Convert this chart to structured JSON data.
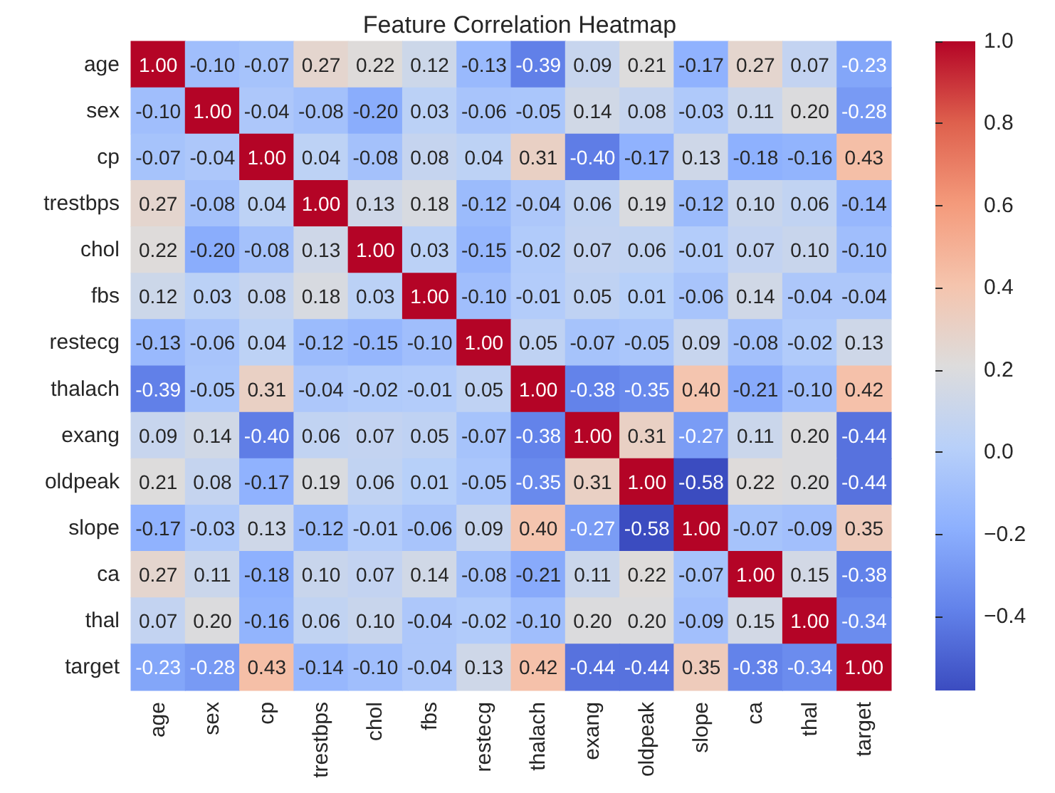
{
  "chart_data": {
    "type": "heatmap",
    "title": "Feature Correlation Heatmap",
    "categories": [
      "age",
      "sex",
      "cp",
      "trestbps",
      "chol",
      "fbs",
      "restecg",
      "thalach",
      "exang",
      "oldpeak",
      "slope",
      "ca",
      "thal",
      "target"
    ],
    "y_categories": [
      "age",
      "sex",
      "cp",
      "trestbps",
      "chol",
      "fbs",
      "restecg",
      "thalach",
      "exang",
      "oldpeak",
      "slope",
      "ca",
      "thal",
      "target"
    ],
    "cells": [
      [
        1.0,
        -0.1,
        -0.07,
        0.27,
        0.22,
        0.12,
        -0.13,
        -0.39,
        0.09,
        0.21,
        -0.17,
        0.27,
        0.07,
        -0.23
      ],
      [
        -0.1,
        1.0,
        -0.04,
        -0.08,
        -0.2,
        0.03,
        -0.06,
        -0.05,
        0.14,
        0.08,
        -0.03,
        0.11,
        0.2,
        -0.28
      ],
      [
        -0.07,
        -0.04,
        1.0,
        0.04,
        -0.08,
        0.08,
        0.04,
        0.31,
        -0.4,
        -0.17,
        0.13,
        -0.18,
        -0.16,
        0.43
      ],
      [
        0.27,
        -0.08,
        0.04,
        1.0,
        0.13,
        0.18,
        -0.12,
        -0.04,
        0.06,
        0.19,
        -0.12,
        0.1,
        0.06,
        -0.14
      ],
      [
        0.22,
        -0.2,
        -0.08,
        0.13,
        1.0,
        0.03,
        -0.15,
        -0.02,
        0.07,
        0.06,
        -0.01,
        0.07,
        0.1,
        -0.1
      ],
      [
        0.12,
        0.03,
        0.08,
        0.18,
        0.03,
        1.0,
        -0.1,
        -0.01,
        0.05,
        0.01,
        -0.06,
        0.14,
        -0.04,
        -0.04
      ],
      [
        -0.13,
        -0.06,
        0.04,
        -0.12,
        -0.15,
        -0.1,
        1.0,
        0.05,
        -0.07,
        -0.05,
        0.09,
        -0.08,
        -0.02,
        0.13
      ],
      [
        -0.39,
        -0.05,
        0.31,
        -0.04,
        -0.02,
        -0.01,
        0.05,
        1.0,
        -0.38,
        -0.35,
        0.4,
        -0.21,
        -0.1,
        0.42
      ],
      [
        0.09,
        0.14,
        -0.4,
        0.06,
        0.07,
        0.05,
        -0.07,
        -0.38,
        1.0,
        0.31,
        -0.27,
        0.11,
        0.2,
        -0.44
      ],
      [
        0.21,
        0.08,
        -0.17,
        0.19,
        0.06,
        0.01,
        -0.05,
        -0.35,
        0.31,
        1.0,
        -0.58,
        0.22,
        0.2,
        -0.44
      ],
      [
        -0.17,
        -0.03,
        0.13,
        -0.12,
        -0.01,
        -0.06,
        0.09,
        0.4,
        -0.27,
        -0.58,
        1.0,
        -0.07,
        -0.09,
        0.35
      ],
      [
        0.27,
        0.11,
        -0.18,
        0.1,
        0.07,
        0.14,
        -0.08,
        -0.21,
        0.11,
        0.22,
        -0.07,
        1.0,
        0.15,
        -0.38
      ],
      [
        0.07,
        0.2,
        -0.16,
        0.06,
        0.1,
        -0.04,
        -0.02,
        -0.1,
        0.2,
        0.2,
        -0.09,
        0.15,
        1.0,
        -0.34
      ],
      [
        -0.23,
        -0.28,
        0.43,
        -0.14,
        -0.1,
        -0.04,
        0.13,
        0.42,
        -0.44,
        -0.44,
        0.35,
        -0.38,
        -0.34,
        1.0
      ]
    ],
    "cell_labels": [
      [
        "1.00",
        "-0.10",
        "-0.07",
        "0.27",
        "0.22",
        "0.12",
        "-0.13",
        "-0.39",
        "0.09",
        "0.21",
        "-0.17",
        "0.27",
        "0.07",
        "-0.23"
      ],
      [
        "-0.10",
        "1.00",
        "-0.04",
        "-0.08",
        "-0.20",
        "0.03",
        "-0.06",
        "-0.05",
        "0.14",
        "0.08",
        "-0.03",
        "0.11",
        "0.20",
        "-0.28"
      ],
      [
        "-0.07",
        "-0.04",
        "1.00",
        "0.04",
        "-0.08",
        "0.08",
        "0.04",
        "0.31",
        "-0.40",
        "-0.17",
        "0.13",
        "-0.18",
        "-0.16",
        "0.43"
      ],
      [
        "0.27",
        "-0.08",
        "0.04",
        "1.00",
        "0.13",
        "0.18",
        "-0.12",
        "-0.04",
        "0.06",
        "0.19",
        "-0.12",
        "0.10",
        "0.06",
        "-0.14"
      ],
      [
        "0.22",
        "-0.20",
        "-0.08",
        "0.13",
        "1.00",
        "0.03",
        "-0.15",
        "-0.02",
        "0.07",
        "0.06",
        "-0.01",
        "0.07",
        "0.10",
        "-0.10"
      ],
      [
        "0.12",
        "0.03",
        "0.08",
        "0.18",
        "0.03",
        "1.00",
        "-0.10",
        "-0.01",
        "0.05",
        "0.01",
        "-0.06",
        "0.14",
        "-0.04",
        "-0.04"
      ],
      [
        "-0.13",
        "-0.06",
        "0.04",
        "-0.12",
        "-0.15",
        "-0.10",
        "1.00",
        "0.05",
        "-0.07",
        "-0.05",
        "0.09",
        "-0.08",
        "-0.02",
        "0.13"
      ],
      [
        "-0.39",
        "-0.05",
        "0.31",
        "-0.04",
        "-0.02",
        "-0.01",
        "0.05",
        "1.00",
        "-0.38",
        "-0.35",
        "0.40",
        "-0.21",
        "-0.10",
        "0.42"
      ],
      [
        "0.09",
        "0.14",
        "-0.40",
        "0.06",
        "0.07",
        "0.05",
        "-0.07",
        "-0.38",
        "1.00",
        "0.31",
        "-0.27",
        "0.11",
        "0.20",
        "-0.44"
      ],
      [
        "0.21",
        "0.08",
        "-0.17",
        "0.19",
        "0.06",
        "0.01",
        "-0.05",
        "-0.35",
        "0.31",
        "1.00",
        "-0.58",
        "0.22",
        "0.20",
        "-0.44"
      ],
      [
        "-0.17",
        "-0.03",
        "0.13",
        "-0.12",
        "-0.01",
        "-0.06",
        "0.09",
        "0.40",
        "-0.27",
        "-0.58",
        "1.00",
        "-0.07",
        "-0.09",
        "0.35"
      ],
      [
        "0.27",
        "0.11",
        "-0.18",
        "0.10",
        "0.07",
        "0.14",
        "-0.08",
        "-0.21",
        "0.11",
        "0.22",
        "-0.07",
        "1.00",
        "0.15",
        "-0.38"
      ],
      [
        "0.07",
        "0.20",
        "-0.16",
        "0.06",
        "0.10",
        "-0.04",
        "-0.02",
        "-0.10",
        "0.20",
        "0.20",
        "-0.09",
        "0.15",
        "1.00",
        "-0.34"
      ],
      [
        "-0.23",
        "-0.28",
        "0.43",
        "-0.14",
        "-0.10",
        "-0.04",
        "0.13",
        "0.42",
        "-0.44",
        "-0.44",
        "0.35",
        "-0.38",
        "-0.34",
        "1.00"
      ]
    ],
    "clim": [
      -0.58,
      1.0
    ],
    "cticks": [
      {
        "value": -0.4,
        "label": "−0.4"
      },
      {
        "value": -0.2,
        "label": "−0.2"
      },
      {
        "value": 0.0,
        "label": "0.0"
      },
      {
        "value": 0.2,
        "label": "0.2"
      },
      {
        "value": 0.4,
        "label": "0.4"
      },
      {
        "value": 0.6,
        "label": "0.6"
      },
      {
        "value": 0.8,
        "label": "0.8"
      },
      {
        "value": 1.0,
        "label": "1.0"
      }
    ]
  }
}
